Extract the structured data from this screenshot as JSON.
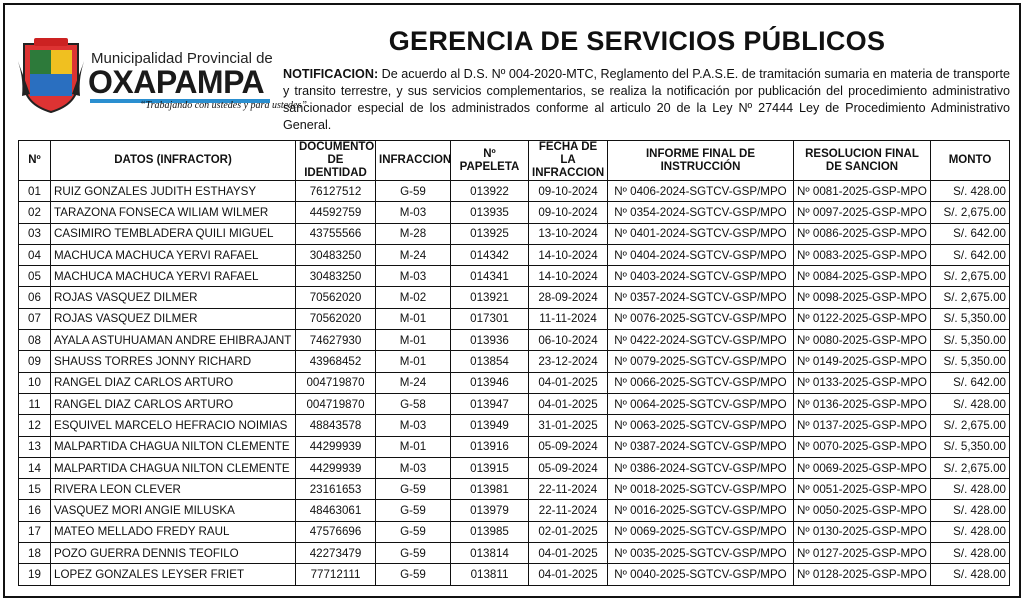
{
  "logo": {
    "line1": "Municipalidad Provincial de",
    "name": "OXAPAMPA",
    "slogan": "“Trabajando con ustedes y para ustedes”"
  },
  "title": "GERENCIA DE SERVICIOS PÚBLICOS",
  "notification": {
    "label": "NOTIFICACION:",
    "text": "De acuerdo al D.S. Nº 004-2020-MTC, Reglamento del P.A.S.E. de tramitación sumaria en materia de transporte y transito terrestre, y sus servicios complementarios, se realiza la notificación por publicación del procedimiento administrativo sancionador especial de los administrados conforme al articulo 20 de la Ley Nº 27444 Ley de Procedimiento Administrativo General."
  },
  "table": {
    "header": [
      "Nº",
      "DATOS (INFRACTOR)",
      "DOCUMENTO DE IDENTIDAD",
      "INFRACCION",
      "Nº PAPELETA",
      "FECHA DE LA INFRACCION",
      "INFORME FINAL DE INSTRUCCIÓN",
      "RESOLUCION FINAL DE SANCION",
      "MONTO"
    ],
    "rows": [
      [
        "01",
        "RUIZ GONZALES JUDITH ESTHAYSY",
        "76127512",
        "G-59",
        "013922",
        "09-10-2024",
        "Nº 0406-2024-SGTCV-GSP/MPO",
        "Nº 0081-2025-GSP-MPO",
        "S/. 428.00"
      ],
      [
        "02",
        "TARAZONA FONSECA WILIAM WILMER",
        "44592759",
        "M-03",
        "013935",
        "09-10-2024",
        "Nº 0354-2024-SGTCV-GSP/MPO",
        "Nº 0097-2025-GSP-MPO",
        "S/. 2,675.00"
      ],
      [
        "03",
        "CASIMIRO TEMBLADERA QUILI MIGUEL",
        "43755566",
        "M-28",
        "013925",
        "13-10-2024",
        "Nº 0401-2024-SGTCV-GSP/MPO",
        "Nº 0086-2025-GSP-MPO",
        "S/. 642.00"
      ],
      [
        "04",
        "MACHUCA MACHUCA YERVI RAFAEL",
        "30483250",
        "M-24",
        "014342",
        "14-10-2024",
        "Nº 0404-2024-SGTCV-GSP/MPO",
        "Nº 0083-2025-GSP-MPO",
        "S/. 642.00"
      ],
      [
        "05",
        "MACHUCA MACHUCA YERVI RAFAEL",
        "30483250",
        "M-03",
        "014341",
        "14-10-2024",
        "Nº 0403-2024-SGTCV-GSP/MPO",
        "Nº 0084-2025-GSP-MPO",
        "S/. 2,675.00"
      ],
      [
        "06",
        "ROJAS VASQUEZ DILMER",
        "70562020",
        "M-02",
        "013921",
        "28-09-2024",
        "Nº 0357-2024-SGTCV-GSP/MPO",
        "Nº 0098-2025-GSP-MPO",
        "S/. 2,675.00"
      ],
      [
        "07",
        "ROJAS VASQUEZ DILMER",
        "70562020",
        "M-01",
        "017301",
        "11-11-2024",
        "Nº 0076-2025-SGTCV-GSP/MPO",
        "Nº 0122-2025-GSP-MPO",
        "S/. 5,350.00"
      ],
      [
        "08",
        "AYALA ASTUHUAMAN ANDRE EHIBRAJANT",
        "74627930",
        "M-01",
        "013936",
        "06-10-2024",
        "Nº 0422-2024-SGTCV-GSP/MPO",
        "Nº 0080-2025-GSP-MPO",
        "S/. 5,350.00"
      ],
      [
        "09",
        "SHAUSS TORRES JONNY RICHARD",
        "43968452",
        "M-01",
        "013854",
        "23-12-2024",
        "Nº 0079-2025-SGTCV-GSP/MPO",
        "Nº 0149-2025-GSP-MPO",
        "S/. 5,350.00"
      ],
      [
        "10",
        "RANGEL DIAZ CARLOS ARTURO",
        "004719870",
        "M-24",
        "013946",
        "04-01-2025",
        "Nº 0066-2025-SGTCV-GSP/MPO",
        "Nº 0133-2025-GSP-MPO",
        "S/. 642.00"
      ],
      [
        "11",
        "RANGEL DIAZ CARLOS ARTURO",
        "004719870",
        "G-58",
        "013947",
        "04-01-2025",
        "Nº 0064-2025-SGTCV-GSP/MPO",
        "Nº 0136-2025-GSP-MPO",
        "S/. 428.00"
      ],
      [
        "12",
        "ESQUIVEL MARCELO HEFRACIO NOIMIAS",
        "48843578",
        "M-03",
        "013949",
        "31-01-2025",
        "Nº 0063-2025-SGTCV-GSP/MPO",
        "Nº 0137-2025-GSP-MPO",
        "S/. 2,675.00"
      ],
      [
        "13",
        "MALPARTIDA CHAGUA NILTON CLEMENTE",
        "44299939",
        "M-01",
        "013916",
        "05-09-2024",
        "Nº 0387-2024-SGTCV-GSP/MPO",
        "Nº 0070-2025-GSP-MPO",
        "S/. 5,350.00"
      ],
      [
        "14",
        "MALPARTIDA CHAGUA NILTON CLEMENTE",
        "44299939",
        "M-03",
        "013915",
        "05-09-2024",
        "Nº 0386-2024-SGTCV-GSP/MPO",
        "Nº 0069-2025-GSP-MPO",
        "S/. 2,675.00"
      ],
      [
        "15",
        "RIVERA LEON CLEVER",
        "23161653",
        "G-59",
        "013981",
        "22-11-2024",
        "Nº 0018-2025-SGTCV-GSP/MPO",
        "Nº 0051-2025-GSP-MPO",
        "S/. 428.00"
      ],
      [
        "16",
        "VASQUEZ MORI ANGIE MILUSKA",
        "48463061",
        "G-59",
        "013979",
        "22-11-2024",
        "Nº 0016-2025-SGTCV-GSP/MPO",
        "Nº 0050-2025-GSP-MPO",
        "S/. 428.00"
      ],
      [
        "17",
        "MATEO MELLADO FREDY RAUL",
        "47576696",
        "G-59",
        "013985",
        "02-01-2025",
        "Nº 0069-2025-SGTCV-GSP/MPO",
        "Nº 0130-2025-GSP-MPO",
        "S/. 428.00"
      ],
      [
        "18",
        "POZO GUERRA DENNIS TEOFILO",
        "42273479",
        "G-59",
        "013814",
        "04-01-2025",
        "Nº 0035-2025-SGTCV-GSP/MPO",
        "Nº 0127-2025-GSP-MPO",
        "S/. 428.00"
      ],
      [
        "19",
        "LOPEZ GONZALES LEYSER FRIET",
        "77712111",
        "G-59",
        "013811",
        "04-01-2025",
        "Nº 0040-2025-SGTCV-GSP/MPO",
        "Nº 0128-2025-GSP-MPO",
        "S/. 428.00"
      ]
    ]
  }
}
